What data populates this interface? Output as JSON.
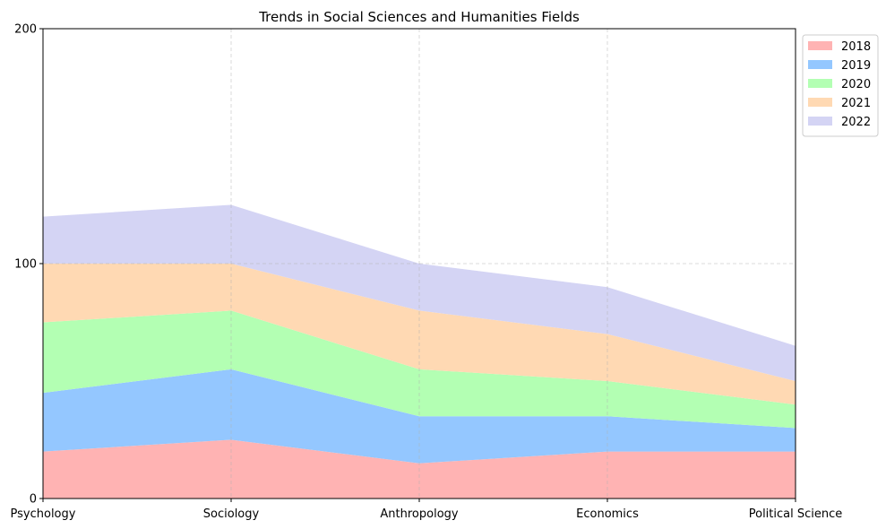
{
  "chart_data": {
    "type": "area",
    "stacked": true,
    "title": "Trends in Social Sciences and Humanities Fields",
    "xlabel": "",
    "ylabel": "",
    "categories": [
      "Psychology",
      "Sociology",
      "Anthropology",
      "Economics",
      "Political Science"
    ],
    "ylim": [
      0,
      200
    ],
    "yticks": [
      0,
      100,
      200
    ],
    "grid": true,
    "legend_position": "upper-right-outside",
    "series": [
      {
        "name": "2018",
        "color": "#ffb3b3",
        "values": [
          20,
          25,
          15,
          20,
          20
        ]
      },
      {
        "name": "2019",
        "color": "#94c7ff",
        "values": [
          25,
          30,
          20,
          15,
          10
        ]
      },
      {
        "name": "2020",
        "color": "#b3ffb3",
        "values": [
          30,
          25,
          20,
          15,
          10
        ]
      },
      {
        "name": "2021",
        "color": "#ffd9b3",
        "values": [
          25,
          20,
          25,
          20,
          10
        ]
      },
      {
        "name": "2022",
        "color": "#d4d4f4",
        "values": [
          20,
          25,
          20,
          20,
          15
        ]
      }
    ]
  }
}
